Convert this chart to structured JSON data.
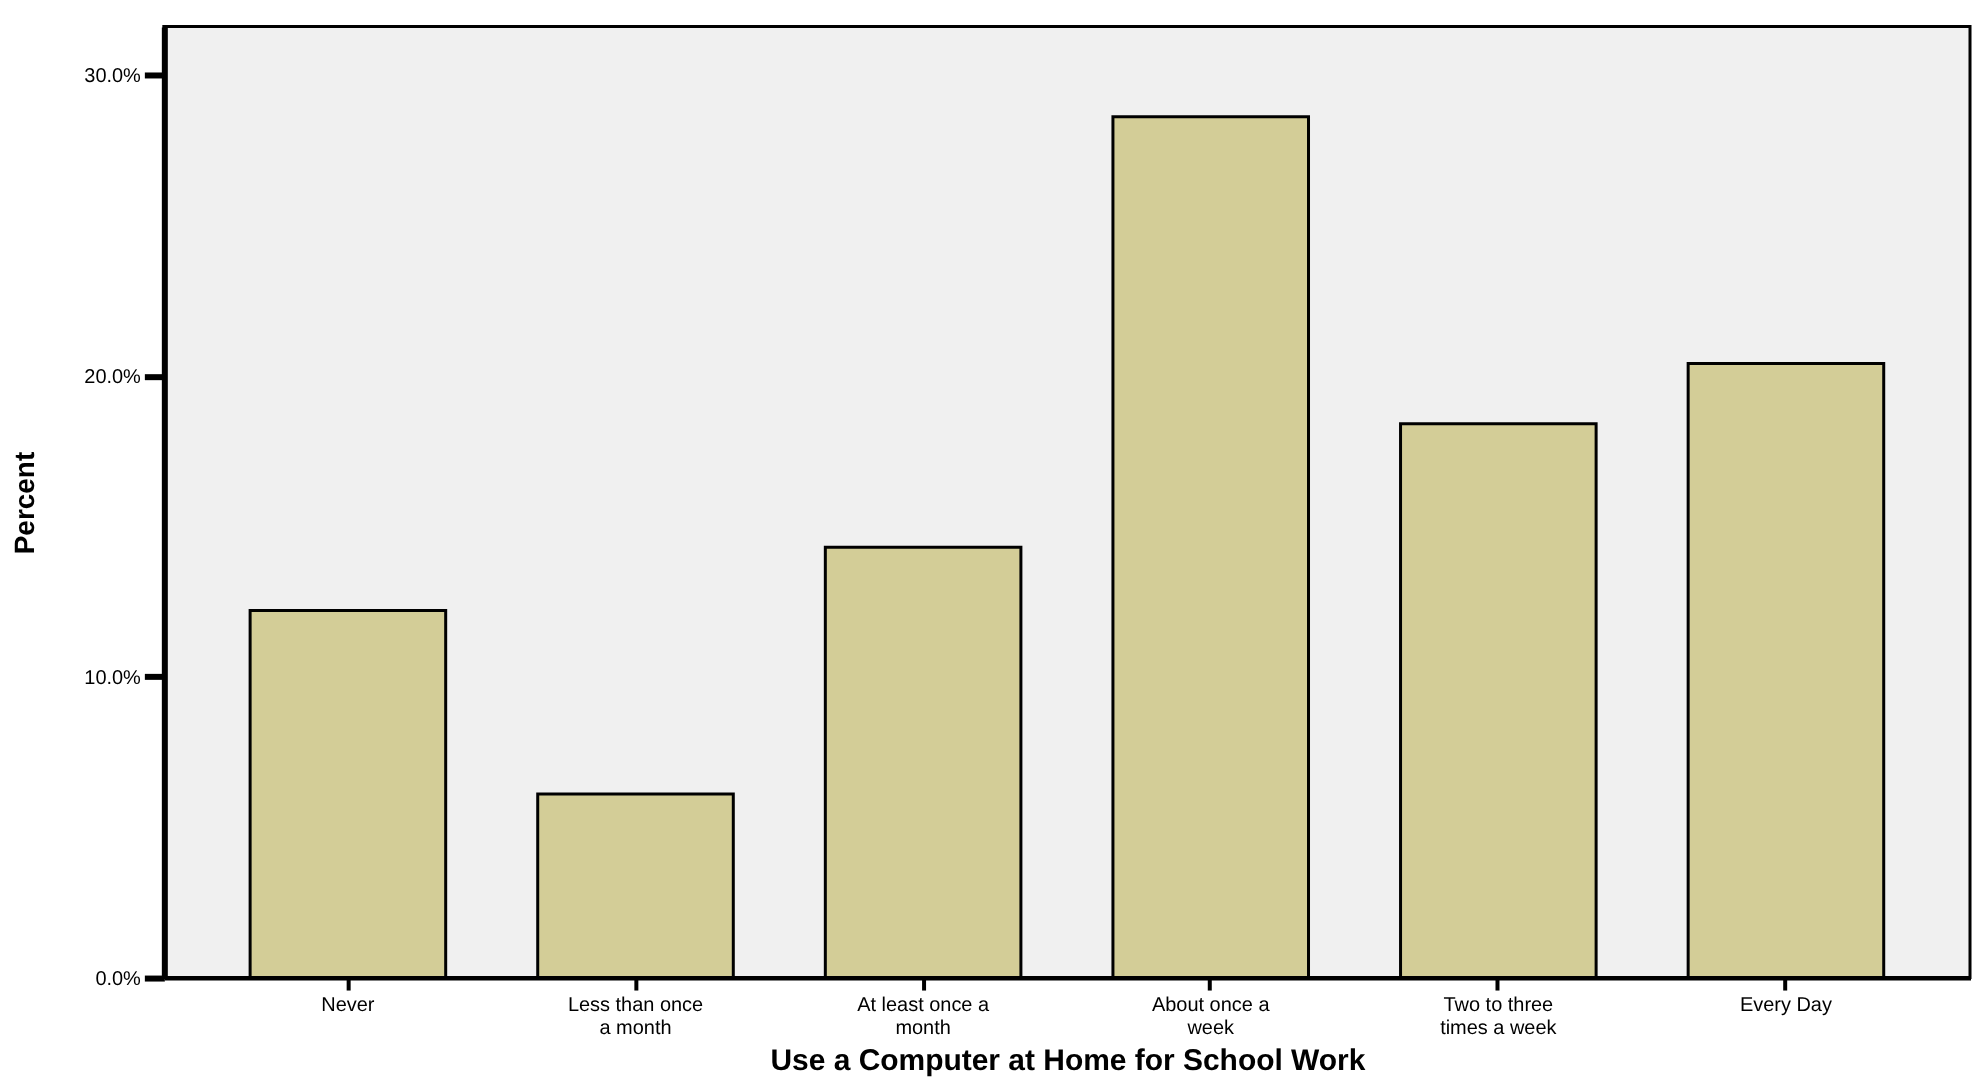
{
  "chart_data": {
    "type": "bar",
    "xlabel": "Use a Computer at Home for School Work",
    "ylabel": "Percent",
    "categories": [
      "Never",
      "Less than once a month",
      "At least once a month",
      "About once a week",
      "Two to three times a week",
      "Every Day"
    ],
    "values": [
      12.2,
      6.1,
      14.3,
      28.6,
      18.4,
      20.4
    ],
    "color": "#d3cd97",
    "ylim": [
      0,
      31.6
    ],
    "yticks": [
      {
        "value": 0,
        "label": "0.0%"
      },
      {
        "value": 10,
        "label": "10.0%"
      },
      {
        "value": 20,
        "label": "20.0%"
      },
      {
        "value": 30,
        "label": "30.0%"
      }
    ],
    "grid": false
  }
}
